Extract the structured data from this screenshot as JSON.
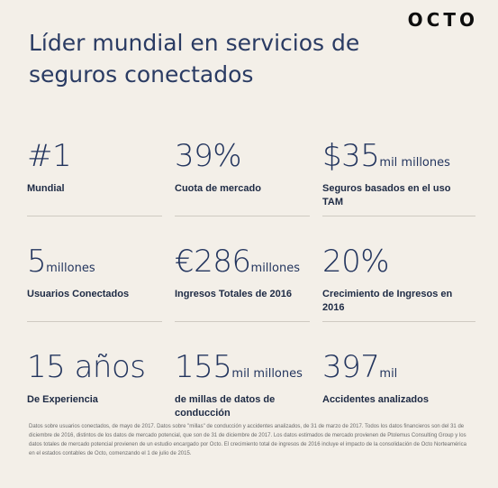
{
  "logo": "OCTO",
  "title": "Líder mundial en servicios de seguros conectados",
  "stats": [
    {
      "value": "#1",
      "unit": "",
      "label": "Mundial"
    },
    {
      "value": "39%",
      "unit": "",
      "label": "Cuota de mercado"
    },
    {
      "value": "$35",
      "unit": "mil millones",
      "label": "Seguros basados en el uso TAM"
    },
    {
      "value": "5",
      "unit": "millones",
      "label": "Usuarios Conectados"
    },
    {
      "value": "€286",
      "unit": "millones",
      "label": "Ingresos Totales de 2016"
    },
    {
      "value": "20%",
      "unit": "",
      "label": "Crecimiento de Ingresos en 2016"
    },
    {
      "value": "15 años",
      "unit": "",
      "label": "De Experiencia"
    },
    {
      "value": "155",
      "unit": "mil millones",
      "label": "de millas de datos de conducción"
    },
    {
      "value": "397",
      "unit": "mil",
      "label": "Accidentes analizados"
    }
  ],
  "footnote": "Datos sobre usuarios conectados, de mayo de 2017. Datos sobre \"millas\" de conducción y accidentes analizados, de 31 de marzo de 2017. Todos los datos financieros son del 31 de diciembre de 2016, distintos de los datos de mercado potencial, que son de 31 de diciembre de 2017. Los datos estimados de mercado provienen de Ptolemus Consulting Group y los datos totales de mercado potencial provienen de un estudio encargado por Octo. El crecimiento total de ingresos de 2016 incluye el impacto de la consolidación de Octo Norteamérica en el estados contables de Octo, comenzando el 1 de julio de 2015."
}
